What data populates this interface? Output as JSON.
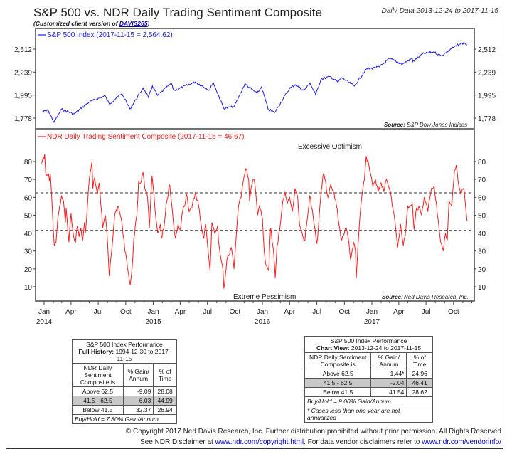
{
  "header": {
    "title": "S&P 500 vs. NDR Daily Trading Sentiment Composite",
    "subtitle_prefix": "(Customized client version of ",
    "subtitle_link": "DAVIS265",
    "subtitle_suffix": ")",
    "date_range": "Daily Data 2013-12-24 to 2017-11-15"
  },
  "chart_data": [
    {
      "type": "line",
      "title": "S&P 500 Index (2017-11-15 = 2,564.62)",
      "scale": "log",
      "yticks": [
        1778,
        1995,
        2239,
        2512
      ],
      "ytick_labels": [
        "1,778",
        "1,995",
        "2,239",
        "2,512"
      ],
      "source_label": "Source:",
      "source": "S&P Dow Jones Indices",
      "color": "#1a1aff",
      "series": [
        {
          "x": [
            "2013-12-24",
            "2014-01-15",
            "2014-02-03",
            "2014-02-28",
            "2014-04-11",
            "2014-05-30",
            "2014-07-24",
            "2014-08-07",
            "2014-09-18",
            "2014-10-15",
            "2014-11-28",
            "2014-12-16",
            "2014-12-29",
            "2015-01-15",
            "2015-03-02",
            "2015-03-11",
            "2015-05-21",
            "2015-07-08",
            "2015-07-20",
            "2015-08-25",
            "2015-09-29",
            "2015-11-03",
            "2015-12-14",
            "2015-12-29",
            "2016-01-20",
            "2016-02-11",
            "2016-03-31",
            "2016-04-20",
            "2016-05-19",
            "2016-06-08",
            "2016-06-27",
            "2016-07-15",
            "2016-08-15",
            "2016-09-09",
            "2016-09-22",
            "2016-11-03",
            "2016-12-13",
            "2017-01-26",
            "2017-03-01",
            "2017-04-13",
            "2017-05-16",
            "2017-05-17",
            "2017-06-19",
            "2017-07-26",
            "2017-08-21",
            "2017-09-20",
            "2017-10-20",
            "2017-11-07",
            "2017-11-15"
          ],
          "y": [
            1833,
            1848,
            1741,
            1859,
            1815,
            1924,
            1988,
            1909,
            2011,
            1862,
            2067,
            1972,
            2090,
            1992,
            2117,
            2040,
            2131,
            2046,
            2128,
            1867,
            1884,
            2109,
            2012,
            2078,
            1859,
            1829,
            2060,
            2102,
            2040,
            2119,
            2000,
            2162,
            2190,
            2128,
            2177,
            2088,
            2271,
            2297,
            2396,
            2329,
            2400,
            2357,
            2453,
            2477,
            2428,
            2508,
            2575,
            2591,
            2564.62
          ]
        }
      ]
    },
    {
      "type": "line",
      "title": "NDR Daily Trading Sentiment Composite (2017-11-15 = 46.67)",
      "yticks": [
        10,
        20,
        30,
        40,
        50,
        60,
        70,
        80
      ],
      "reference_lines": [
        62.5,
        41.5
      ],
      "annotations": {
        "top": "Excessive Optimism",
        "bottom": "Extreme Pessimism"
      },
      "source_label": "Source:",
      "source": "Ned Davis Research, Inc.",
      "color": "#ff1a1a",
      "xtick_labels": [
        "Jan",
        "Apr",
        "Jul",
        "Oct",
        "Jan",
        "Apr",
        "Jul",
        "Oct",
        "Jan",
        "Apr",
        "Jul",
        "Oct",
        "Jan",
        "Apr",
        "Jul",
        "Oct"
      ],
      "xtick_dates": [
        "2014-01-01",
        "2014-04-01",
        "2014-07-01",
        "2014-10-01",
        "2015-01-01",
        "2015-04-01",
        "2015-07-01",
        "2015-10-01",
        "2016-01-01",
        "2016-04-01",
        "2016-07-01",
        "2016-10-01",
        "2017-01-01",
        "2017-04-01",
        "2017-07-01",
        "2017-10-01"
      ],
      "year_labels": [
        "2014",
        "2015",
        "2016",
        "2017"
      ],
      "series": [
        {
          "x": [
            "2013-12-24",
            "2014-01-03",
            "2014-01-07",
            "2014-01-16",
            "2014-01-19",
            "2014-01-22",
            "2014-01-28",
            "2014-02-04",
            "2014-02-10",
            "2014-02-16",
            "2014-02-22",
            "2014-02-28",
            "2014-03-07",
            "2014-03-13",
            "2014-03-16",
            "2014-03-25",
            "2014-04-01",
            "2014-04-10",
            "2014-04-16",
            "2014-04-22",
            "2014-04-28",
            "2014-05-04",
            "2014-05-10",
            "2014-05-16",
            "2014-05-19",
            "2014-05-25",
            "2014-06-01",
            "2014-06-10",
            "2014-06-13",
            "2014-06-19",
            "2014-06-28",
            "2014-07-04",
            "2014-07-16",
            "2014-07-25",
            "2014-08-01",
            "2014-08-07",
            "2014-08-13",
            "2014-08-25",
            "2014-09-07",
            "2014-09-19",
            "2014-09-28",
            "2014-10-04",
            "2014-10-16",
            "2014-10-22",
            "2014-10-28",
            "2014-11-07",
            "2014-11-13",
            "2014-11-22",
            "2014-11-28",
            "2014-12-04",
            "2014-12-13",
            "2014-12-19",
            "2014-12-28",
            "2015-01-04",
            "2015-01-10",
            "2015-01-16",
            "2015-01-25",
            "2015-01-28",
            "2015-02-07",
            "2015-02-13",
            "2015-02-25",
            "2015-03-01",
            "2015-03-10",
            "2015-03-16",
            "2015-03-25",
            "2015-04-01",
            "2015-04-10",
            "2015-04-16",
            "2015-04-22",
            "2015-05-01",
            "2015-05-10",
            "2015-05-22",
            "2015-06-01",
            "2015-06-10",
            "2015-06-19",
            "2015-06-25",
            "2015-07-04",
            "2015-07-10",
            "2015-07-16",
            "2015-07-25",
            "2015-08-04",
            "2015-08-07",
            "2015-08-13",
            "2015-08-22",
            "2015-08-25",
            "2015-09-04",
            "2015-09-13",
            "2015-09-19",
            "2015-09-28",
            "2015-10-04",
            "2015-10-13",
            "2015-10-22",
            "2015-10-28",
            "2015-11-07",
            "2015-11-16",
            "2015-11-19",
            "2015-11-28",
            "2015-12-04",
            "2015-12-10",
            "2015-12-16",
            "2015-12-22",
            "2016-01-01",
            "2016-01-07",
            "2016-01-13",
            "2016-01-22",
            "2016-01-28",
            "2016-02-07",
            "2016-02-13",
            "2016-02-19",
            "2016-02-28",
            "2016-03-07",
            "2016-03-16",
            "2016-03-25",
            "2016-04-01",
            "2016-04-10",
            "2016-04-19",
            "2016-04-28",
            "2016-05-04",
            "2016-05-13",
            "2016-05-22",
            "2016-05-28",
            "2016-06-07",
            "2016-06-16",
            "2016-06-22",
            "2016-07-01",
            "2016-07-07",
            "2016-07-16",
            "2016-07-22",
            "2016-07-28",
            "2016-08-07",
            "2016-08-16",
            "2016-08-25",
            "2016-09-04",
            "2016-09-13",
            "2016-09-22",
            "2016-10-01",
            "2016-10-07",
            "2016-10-16",
            "2016-10-22",
            "2016-11-01",
            "2016-11-07",
            "2016-11-10",
            "2016-11-19",
            "2016-11-28",
            "2016-12-07",
            "2016-12-13",
            "2016-12-22",
            "2016-12-28",
            "2017-01-04",
            "2017-01-13",
            "2017-01-22",
            "2017-02-01",
            "2017-02-10",
            "2017-02-19",
            "2017-02-28",
            "2017-03-04",
            "2017-03-13",
            "2017-03-22",
            "2017-03-28",
            "2017-04-07",
            "2017-04-16",
            "2017-04-22",
            "2017-05-01",
            "2017-05-07",
            "2017-05-16",
            "2017-05-22",
            "2017-05-28",
            "2017-06-07",
            "2017-06-16",
            "2017-06-25",
            "2017-07-07",
            "2017-07-19",
            "2017-07-28",
            "2017-08-10",
            "2017-08-19",
            "2017-08-28",
            "2017-09-04",
            "2017-09-10",
            "2017-09-16",
            "2017-09-25",
            "2017-10-04",
            "2017-10-10",
            "2017-10-19",
            "2017-10-25",
            "2017-11-04",
            "2017-11-10",
            "2017-11-15"
          ],
          "y": [
            79,
            84,
            72,
            73,
            69,
            73,
            55,
            33,
            35,
            48,
            55,
            61,
            58,
            46,
            54,
            35,
            51,
            38,
            35,
            44,
            38,
            43,
            36,
            46,
            40,
            53,
            70,
            80,
            65,
            71,
            62,
            68,
            43,
            50,
            35,
            16,
            27,
            50,
            55,
            45,
            30,
            25,
            11,
            20,
            37,
            50,
            69,
            69,
            74,
            65,
            60,
            43,
            72,
            60,
            48,
            40,
            45,
            37,
            45,
            56,
            67,
            60,
            45,
            37,
            45,
            42,
            53,
            55,
            62,
            52,
            54,
            63,
            56,
            45,
            37,
            45,
            29,
            19,
            46,
            40,
            44,
            36,
            28,
            20,
            9,
            25,
            28,
            32,
            20,
            35,
            55,
            60,
            68,
            76,
            70,
            58,
            68,
            70,
            62,
            50,
            55,
            48,
            30,
            22,
            19,
            43,
            30,
            15,
            33,
            42,
            55,
            63,
            57,
            60,
            52,
            65,
            60,
            45,
            40,
            36,
            45,
            61,
            53,
            45,
            34,
            45,
            64,
            73,
            70,
            60,
            67,
            63,
            56,
            45,
            36,
            40,
            43,
            35,
            25,
            35,
            30,
            15,
            42,
            60,
            70,
            83,
            78,
            73,
            66,
            70,
            63,
            68,
            63,
            70,
            65,
            63,
            53,
            42,
            32,
            45,
            33,
            38,
            55,
            55,
            57,
            42,
            52,
            55,
            50,
            60,
            52,
            65,
            66,
            48,
            35,
            30,
            40,
            36,
            58,
            55,
            75,
            78,
            66,
            62,
            65,
            55,
            46.67
          ]
        }
      ]
    }
  ],
  "tables": {
    "full_history": {
      "title": "S&P 500 Index Performance",
      "period_label": "Full History:",
      "period": "1994-12-30 to 2017-11-15",
      "headers": [
        "NDR Daily Sentiment Composite is",
        "% Gain/ Annum",
        "% of Time"
      ],
      "rows": [
        [
          "Above 62.5",
          "-9.09",
          "28.08"
        ],
        [
          "41.5 - 62.5",
          "6.03",
          "44.99"
        ],
        [
          "Below 41.5",
          "32.37",
          "26.94"
        ]
      ],
      "footer": "Buy/Hold = 7.80% Gain/Annum"
    },
    "chart_view": {
      "title": "S&P 500 Index Performance",
      "period_label": "Chart View:",
      "period": "2013-12-24 to 2017-11-15",
      "headers": [
        "NDR Daily Sentiment Composite is",
        "% Gain/ Annum",
        "% of Time"
      ],
      "rows": [
        [
          "Above 62.5",
          "-1.44*",
          "24.96"
        ],
        [
          "41.5 - 62.5",
          "-2.04",
          "46.41"
        ],
        [
          "Below 41.5",
          "41.54",
          "28.62"
        ]
      ],
      "footer": "Buy/Hold = 9.00% Gain/Annum",
      "note": "* Cases less than one year are not annualized"
    }
  },
  "footer": {
    "copyright": "© Copyright 2017 Ned Davis Research, Inc. Further distribution prohibited without prior permission. All Rights Reserved",
    "disclaimer_prefix": "See NDR Disclaimer at ",
    "disclaimer_link": "www.ndr.com/copyright.html",
    "vendor_prefix": ". For data vendor disclaimers refer to ",
    "vendor_link": "www.ndr.com/vendorinfo/"
  }
}
